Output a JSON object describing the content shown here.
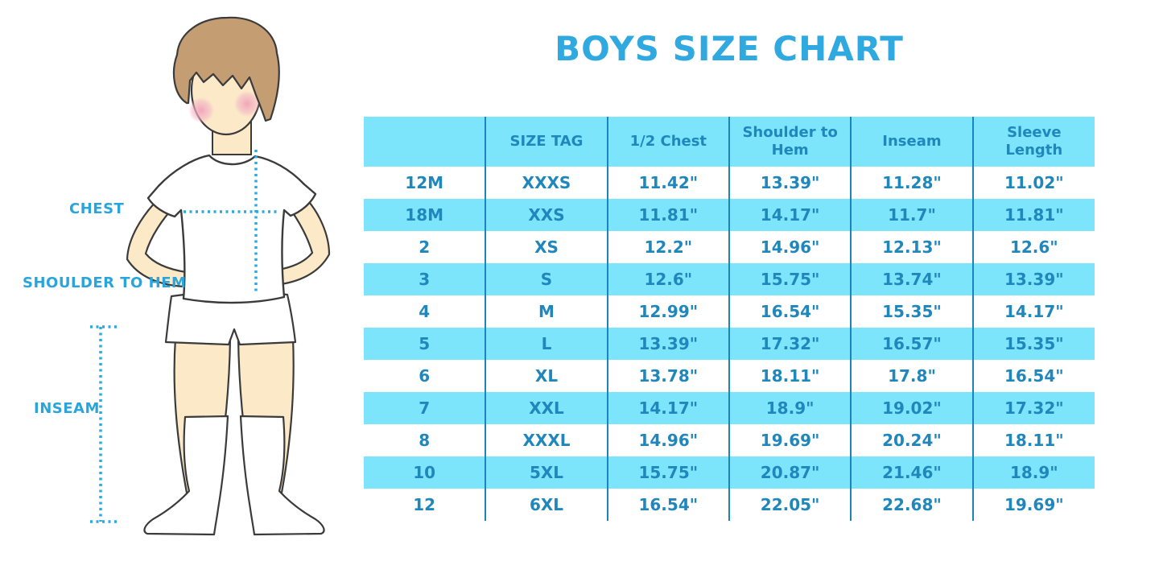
{
  "title": "BOYS SIZE CHART",
  "figure": {
    "labels": {
      "chest": "CHEST",
      "shoulder_to_hem": "SHOULDER TO HEM",
      "inseam": "INSEAM"
    }
  },
  "colors": {
    "title_blue": "#2fa9df",
    "table_text_blue": "#1f87bc",
    "band_cyan": "#7ce4fb",
    "column_line_blue": "#1b85bb",
    "dotted_measure_line": "#29abe2",
    "label_blue": "#29a5dc",
    "skin": "#fbe9c8",
    "hair_brown": "#c49d72",
    "blush_pink": "#f2a9be",
    "outline": "#3b3b3b"
  },
  "chart_data": {
    "type": "table",
    "title": "BOYS SIZE CHART",
    "columns": [
      "",
      "SIZE TAG",
      "1/2 Chest",
      "Shoulder to Hem",
      "Inseam",
      "Sleeve Length"
    ],
    "rows": [
      [
        "12M",
        "XXXS",
        "11.42\"",
        "13.39\"",
        "11.28\"",
        "11.02\""
      ],
      [
        "18M",
        "XXS",
        "11.81\"",
        "14.17\"",
        "11.7\"",
        "11.81\""
      ],
      [
        "2",
        "XS",
        "12.2\"",
        "14.96\"",
        "12.13\"",
        "12.6\""
      ],
      [
        "3",
        "S",
        "12.6\"",
        "15.75\"",
        "13.74\"",
        "13.39\""
      ],
      [
        "4",
        "M",
        "12.99\"",
        "16.54\"",
        "15.35\"",
        "14.17\""
      ],
      [
        "5",
        "L",
        "13.39\"",
        "17.32\"",
        "16.57\"",
        "15.35\""
      ],
      [
        "6",
        "XL",
        "13.78\"",
        "18.11\"",
        "17.8\"",
        "16.54\""
      ],
      [
        "7",
        "XXL",
        "14.17\"",
        "18.9\"",
        "19.02\"",
        "17.32\""
      ],
      [
        "8",
        "XXXL",
        "14.96\"",
        "19.69\"",
        "20.24\"",
        "18.11\""
      ],
      [
        "10",
        "5XL",
        "15.75\"",
        "20.87\"",
        "21.46\"",
        "18.9\""
      ],
      [
        "12",
        "6XL",
        "16.54\"",
        "22.05\"",
        "22.68\"",
        "19.69\""
      ]
    ],
    "layout": {
      "striping": "header cyan, then rows alternate white / cyan starting with white",
      "column_separators": "vertical dark-blue lines between all 6 columns",
      "units": "inches"
    }
  }
}
